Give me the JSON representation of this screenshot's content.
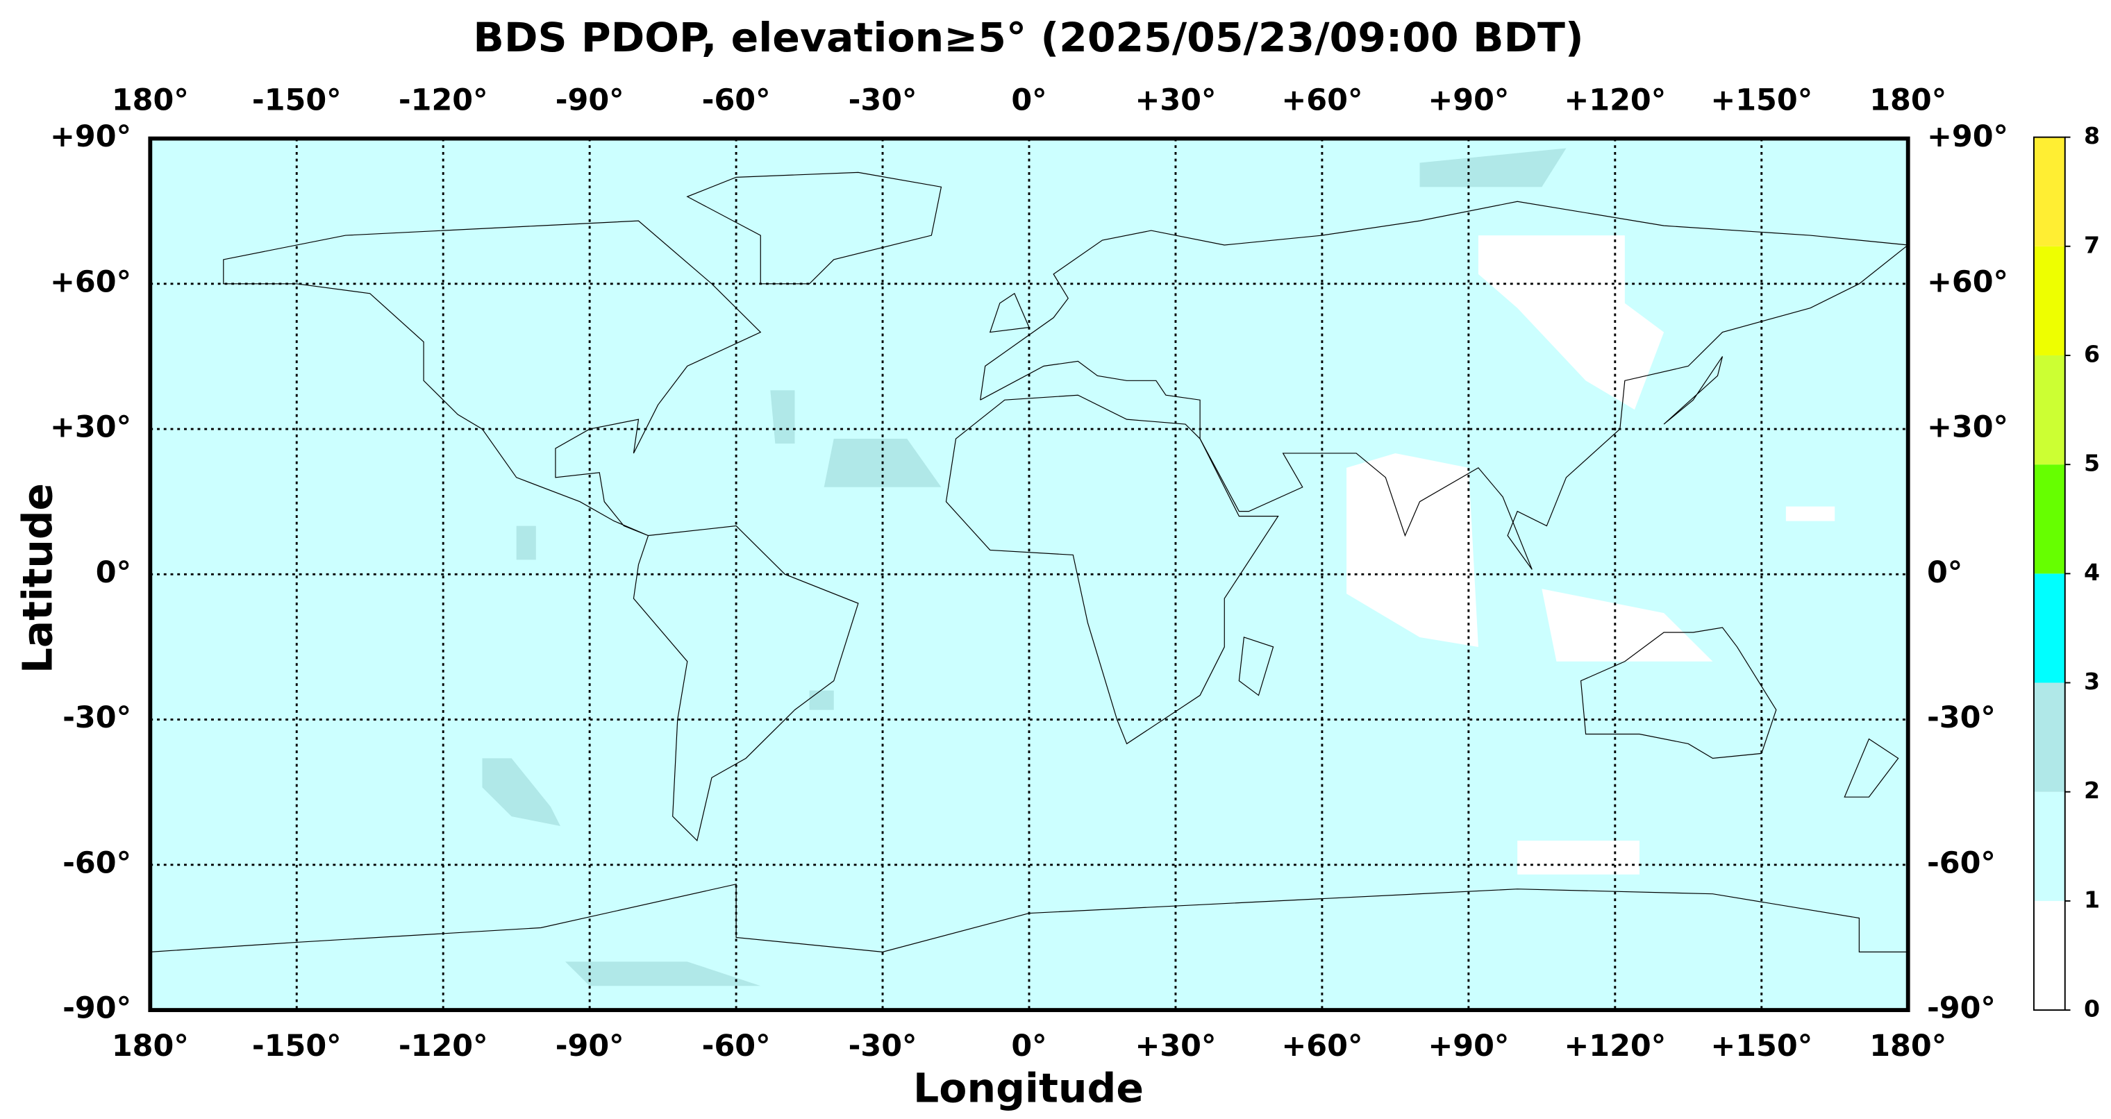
{
  "chart_data": {
    "type": "map",
    "title": "BDS PDOP, elevation≥5° (2025/05/23/09:00 BDT)",
    "xlabel": "Longitude",
    "ylabel": "Latitude",
    "xlim": [
      -180,
      180
    ],
    "ylim": [
      -90,
      90
    ],
    "xticks": [
      {
        "value": -180,
        "label": "180°"
      },
      {
        "value": -150,
        "label": "-150°"
      },
      {
        "value": -120,
        "label": "-120°"
      },
      {
        "value": -90,
        "label": "-90°"
      },
      {
        "value": -60,
        "label": "-60°"
      },
      {
        "value": -30,
        "label": "-30°"
      },
      {
        "value": 0,
        "label": "0°"
      },
      {
        "value": 30,
        "label": "+30°"
      },
      {
        "value": 60,
        "label": "+60°"
      },
      {
        "value": 90,
        "label": "+90°"
      },
      {
        "value": 120,
        "label": "+120°"
      },
      {
        "value": 150,
        "label": "+150°"
      },
      {
        "value": 180,
        "label": "180°"
      }
    ],
    "yticks": [
      {
        "value": 90,
        "label": "+90°"
      },
      {
        "value": 60,
        "label": "+60°"
      },
      {
        "value": 30,
        "label": "+30°"
      },
      {
        "value": 0,
        "label": "0°"
      },
      {
        "value": -30,
        "label": "-30°"
      },
      {
        "value": -60,
        "label": "-60°"
      },
      {
        "value": -90,
        "label": "-90°"
      }
    ],
    "grid": true,
    "colorbar": {
      "clim": [
        0,
        8
      ],
      "ticks": [
        0,
        1,
        2,
        3,
        4,
        5,
        6,
        7,
        8
      ],
      "colors": [
        "#ffffff",
        "#ccffff",
        "#b0e8e8",
        "#00ffff",
        "#66ff00",
        "#ccff33",
        "#eeff00",
        "#ffee33"
      ]
    }
  }
}
